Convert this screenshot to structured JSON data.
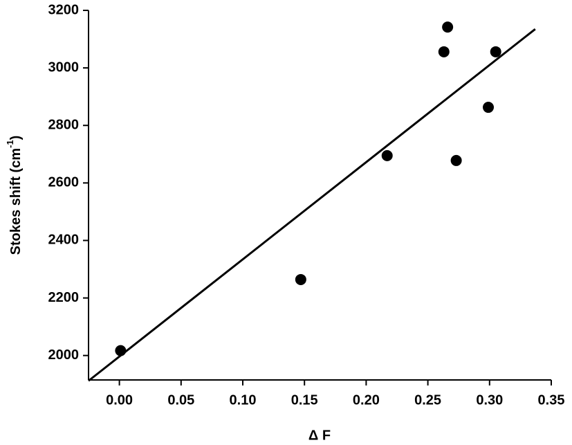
{
  "chart_data": {
    "type": "scatter",
    "xlabel": "Δ F",
    "ylabel": {
      "text": "Stokes shift (cm",
      "sup": "-1",
      "end": ")"
    },
    "x": [
      0.001,
      0.147,
      0.217,
      0.263,
      0.266,
      0.273,
      0.299,
      0.305
    ],
    "values": [
      2017,
      2264,
      2695,
      3056,
      3142,
      2678,
      2863,
      3056
    ],
    "color": "#000000",
    "fit_line": {
      "x": [
        -0.025,
        0.337
      ],
      "values": [
        1912,
        3135
      ]
    },
    "xlim": [
      -0.025,
      0.35
    ],
    "ylim": [
      1915,
      3200
    ],
    "xticks": [
      {
        "value": 0,
        "label": "0.00"
      },
      {
        "value": 0.05,
        "label": "0.05"
      },
      {
        "value": 0.1,
        "label": "0.10"
      },
      {
        "value": 0.15,
        "label": "0.15"
      },
      {
        "value": 0.2,
        "label": "0.20"
      },
      {
        "value": 0.25,
        "label": "0.25"
      },
      {
        "value": 0.3,
        "label": "0.30"
      },
      {
        "value": 0.35,
        "label": "0.35"
      }
    ],
    "yticks": [
      2000,
      2200,
      2400,
      2600,
      2800,
      3000,
      3200
    ],
    "grid": false
  }
}
